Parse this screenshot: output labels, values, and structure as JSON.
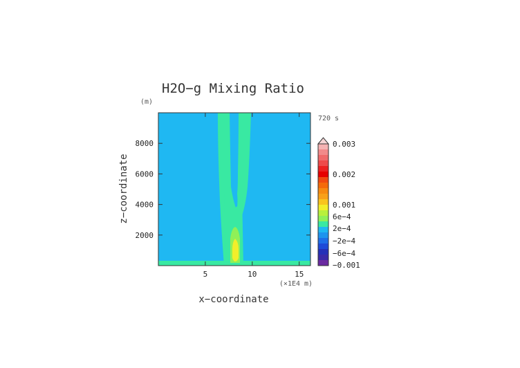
{
  "chart_data": {
    "type": "heatmap",
    "title": "H2O−g Mixing Ratio",
    "time_label": "720 s",
    "xlabel": "x−coordinate",
    "ylabel": "z−coordinate",
    "x_units": "(×1E4 m)",
    "y_units": "(m)",
    "xlim": [
      0,
      16.2
    ],
    "ylim": [
      0,
      10000
    ],
    "xticks": [
      5,
      10,
      15
    ],
    "xtick_labels": [
      "5",
      "10",
      "15"
    ],
    "yticks": [
      2000,
      4000,
      6000,
      8000
    ],
    "ytick_labels": [
      "2000",
      "4000",
      "6000",
      "8000"
    ],
    "features": [
      {
        "name": "background",
        "value": "-1e-4",
        "color": "#1fb8f2"
      },
      {
        "name": "surface-layer",
        "z_range": [
          0,
          250
        ],
        "value": "2e-4",
        "color": "#39e9a2"
      },
      {
        "name": "plume-left-branch",
        "x_range": [
          6.1,
          7.5
        ],
        "z_range": [
          0,
          10000
        ],
        "value": "2e-4",
        "color": "#39e9a2"
      },
      {
        "name": "plume-right-branch",
        "x_range": [
          8.1,
          9.4
        ],
        "z_range": [
          4800,
          10000
        ],
        "value": "2e-4",
        "color": "#39e9a2"
      },
      {
        "name": "plume-stem",
        "x_range": [
          6.9,
          8.6
        ],
        "z_range": [
          0,
          5000
        ],
        "value": "2e-4",
        "color": "#39e9a2"
      },
      {
        "name": "core-green",
        "x": 7.95,
        "z_range": [
          0,
          2600
        ],
        "value": "4e-4",
        "color": "#8ff058"
      },
      {
        "name": "core-yellow",
        "x": 7.95,
        "z_range": [
          100,
          1400
        ],
        "value": "6e-4",
        "color": "#f2ee2a"
      }
    ],
    "colorbar": {
      "tick_labels": [
        "0.003",
        "0.002",
        "0.001",
        "6e−4",
        "2e−4",
        "−2e−4",
        "−6e−4",
        "−0.001"
      ],
      "colors": [
        "#f5b3b3",
        "#f28a8a",
        "#f06a6a",
        "#ee4a4a",
        "#ec2020",
        "#e60000",
        "#f04a10",
        "#f46a0a",
        "#f68a10",
        "#f8a018",
        "#f9c41e",
        "#f2ee2a",
        "#b8f03c",
        "#8ff058",
        "#39e9a2",
        "#1fb8f2",
        "#1e94ee",
        "#1e6ee8",
        "#1e4ad8",
        "#2430b8",
        "#3a2aa8",
        "#6a2aa0"
      ]
    }
  }
}
